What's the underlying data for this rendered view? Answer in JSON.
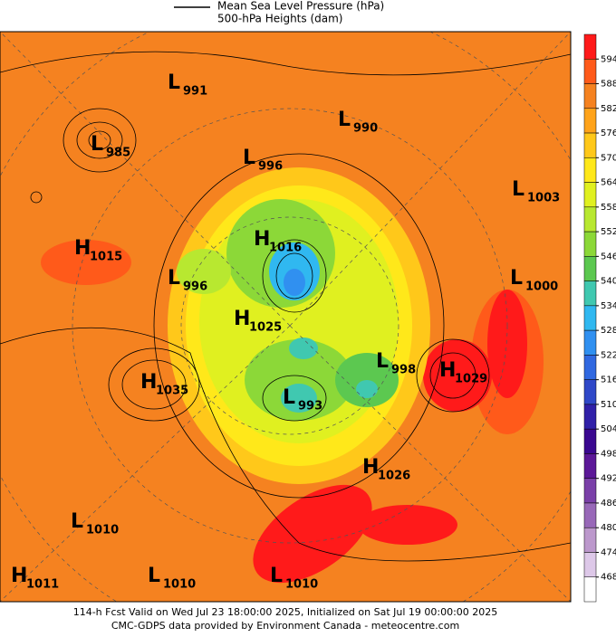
{
  "legend": {
    "pressure": "Mean Sea Level Pressure (hPa)",
    "heights": "500-hPa Heights (dam)"
  },
  "centers": [
    {
      "type": "L",
      "value": "991"
    },
    {
      "type": "L",
      "value": "985"
    },
    {
      "type": "L",
      "value": "996"
    },
    {
      "type": "L",
      "value": "990"
    },
    {
      "type": "L",
      "value": "1003"
    },
    {
      "type": "H",
      "value": "1015"
    },
    {
      "type": "H",
      "value": "1016"
    },
    {
      "type": "L",
      "value": "996"
    },
    {
      "type": "L",
      "value": "1000"
    },
    {
      "type": "H",
      "value": "1025"
    },
    {
      "type": "H",
      "value": "1035"
    },
    {
      "type": "L",
      "value": "998"
    },
    {
      "type": "H",
      "value": "1029"
    },
    {
      "type": "L",
      "value": "993"
    },
    {
      "type": "H",
      "value": "1026"
    },
    {
      "type": "L",
      "value": "1010"
    },
    {
      "type": "H",
      "value": "1011"
    },
    {
      "type": "L",
      "value": "1010"
    },
    {
      "type": "L",
      "value": "1010"
    }
  ],
  "colorbar": {
    "ticks": [
      "594",
      "588",
      "582",
      "576",
      "570",
      "564",
      "558",
      "552",
      "546",
      "540",
      "534",
      "528",
      "522",
      "516",
      "510",
      "504",
      "498",
      "492",
      "486",
      "480",
      "474",
      "468"
    ],
    "colors": [
      "#ff1a1a",
      "#ff5a1a",
      "#f58220",
      "#ffa31a",
      "#ffc81a",
      "#ffe81a",
      "#e0f020",
      "#b8e830",
      "#8cd838",
      "#5cc850",
      "#40c8b0",
      "#30b8f0",
      "#3090f0",
      "#3068e0",
      "#2f48c8",
      "#3020a8",
      "#3a0890",
      "#5c1898",
      "#7a40a8",
      "#9868b8",
      "#bc98cc",
      "#ddc8e8",
      "#ffffff"
    ]
  },
  "footer": {
    "line1": "114-h Fcst Valid on Wed Jul 23 18:00:00 2025, Initialized on Sat Jul 19 00:00:00 2025",
    "line2": "CMC-GDPS data provided by Environment Canada - meteocentre.com"
  }
}
